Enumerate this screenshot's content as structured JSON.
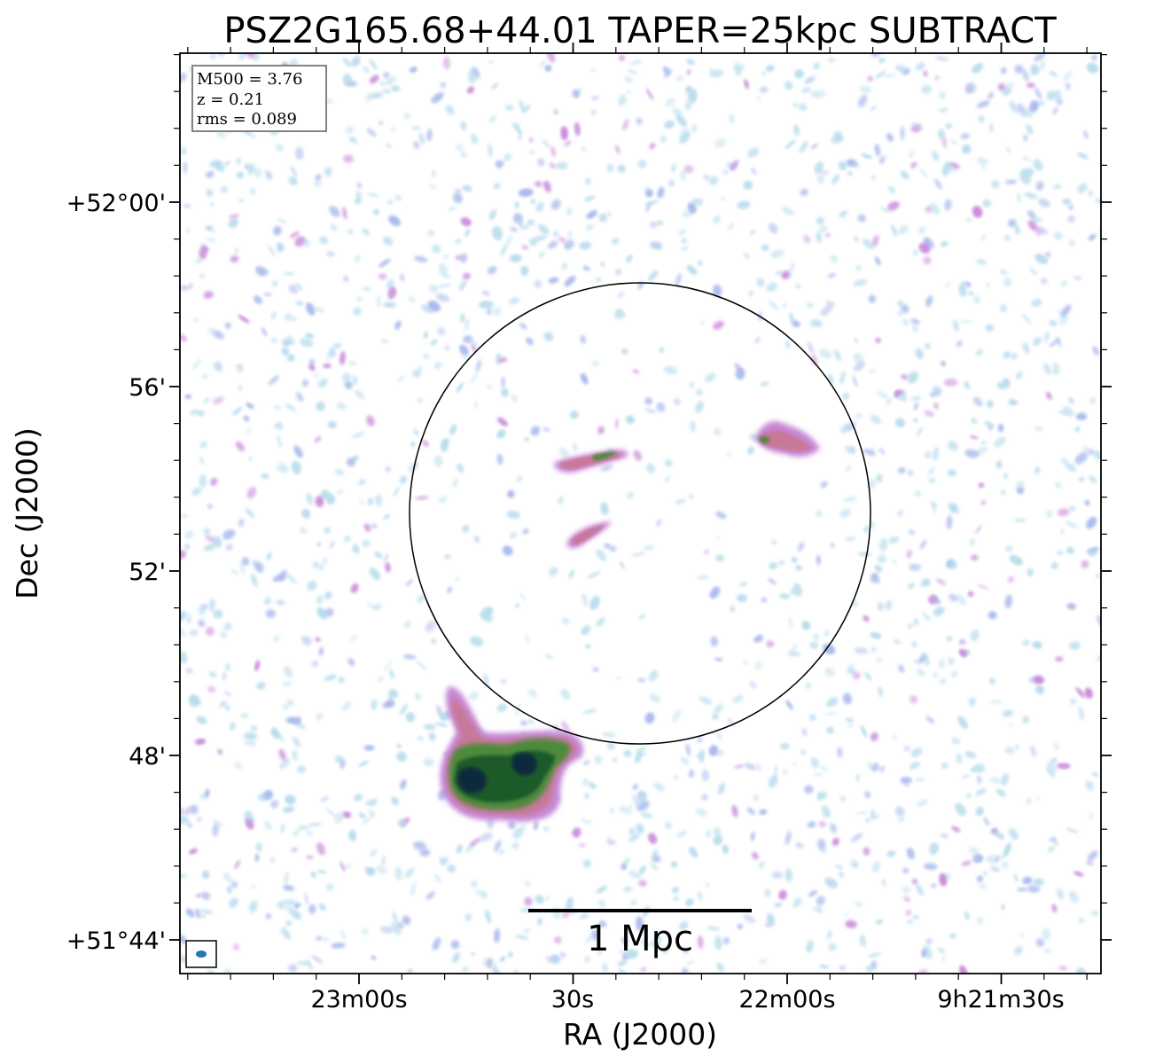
{
  "chart_data": {
    "type": "heatmap",
    "title": "PSZ2G165.68+44.01 TAPER=25kpc SUBTRACT",
    "xlabel": "RA (J2000)",
    "ylabel": "Dec (J2000)",
    "x_ticks": [
      "23m00s",
      "30s",
      "22m00s",
      "9h21m30s"
    ],
    "y_ticks": [
      "+52°00'",
      "56'",
      "52'",
      "48'",
      "+51°44'"
    ],
    "info_box": {
      "m500": "M500 = 3.76",
      "z": "z = 0.21",
      "rms": "rms = 0.089"
    },
    "scale_bar_label": "1 Mpc",
    "colormap": [
      "#ffffff",
      "#b8dcec",
      "#a8b8ec",
      "#c888d8",
      "#c87898",
      "#4e8a3a",
      "#1e5a2a",
      "#0c2a3e"
    ],
    "beam_color": "#1f77b4",
    "sources": [
      {
        "ra": "09h22m40s",
        "dec": "+51°47'30\"",
        "level": "brightest",
        "note": "extended emission"
      },
      {
        "ra": "09h22m27s",
        "dec": "+51°54'10\"",
        "level": "moderate"
      },
      {
        "ra": "09h22m26s",
        "dec": "+51°52'30\"",
        "level": "moderate"
      },
      {
        "ra": "09h21m58s",
        "dec": "+51°54'40\"",
        "level": "moderate"
      }
    ],
    "grid": false
  }
}
